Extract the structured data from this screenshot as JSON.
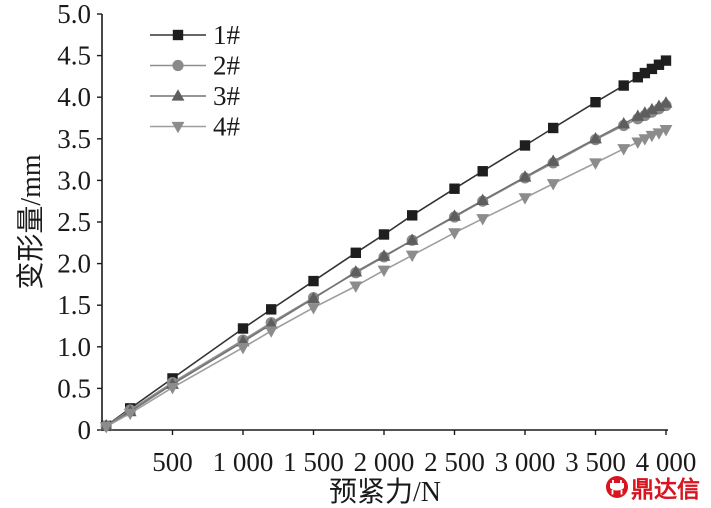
{
  "chart_data": {
    "type": "line",
    "xlabel": "预紧力/N",
    "ylabel": "变形量/mm",
    "xlim": [
      0,
      4000
    ],
    "ylim": [
      0,
      5.0
    ],
    "xticks": [
      500,
      1000,
      1500,
      2000,
      2500,
      3000,
      3500,
      4000
    ],
    "xtick_labels": [
      "500",
      "1 000",
      "1 500",
      "2 000",
      "2 500",
      "3 000",
      "3 500",
      "4 000"
    ],
    "yticks": [
      0,
      0.5,
      1.0,
      1.5,
      2.0,
      2.5,
      3.0,
      3.5,
      4.0,
      4.5,
      5.0
    ],
    "ytick_labels": [
      "0",
      "0.5",
      "1.0",
      "1.5",
      "2.0",
      "2.5",
      "3.0",
      "3.5",
      "4.0",
      "4.5",
      "5.0"
    ],
    "grid": false,
    "legend": {
      "position": "top-left"
    },
    "x": [
      30,
      200,
      500,
      1000,
      1200,
      1500,
      1800,
      2000,
      2200,
      2500,
      2700,
      3000,
      3200,
      3500,
      3700,
      3800,
      3850,
      3900,
      3950,
      4000
    ],
    "series": [
      {
        "name": "1#",
        "marker": "square-marker",
        "line_color": "#333333",
        "marker_color": "#1e1e1e",
        "values": [
          0.05,
          0.26,
          0.62,
          1.22,
          1.45,
          1.79,
          2.13,
          2.35,
          2.58,
          2.9,
          3.11,
          3.42,
          3.63,
          3.94,
          4.14,
          4.24,
          4.29,
          4.34,
          4.39,
          4.44
        ]
      },
      {
        "name": "2#",
        "marker": "circle-marker",
        "line_color": "#8f8f8f",
        "marker_color": "#8a8a8a",
        "values": [
          0.05,
          0.24,
          0.57,
          1.08,
          1.29,
          1.59,
          1.89,
          2.08,
          2.28,
          2.56,
          2.75,
          3.03,
          3.21,
          3.49,
          3.66,
          3.74,
          3.78,
          3.82,
          3.86,
          3.9
        ]
      },
      {
        "name": "3#",
        "marker": "triangle-up-marker",
        "line_color": "#737373",
        "marker_color": "#5e5e5e",
        "values": [
          0.05,
          0.22,
          0.55,
          1.06,
          1.27,
          1.58,
          1.9,
          2.09,
          2.28,
          2.57,
          2.76,
          3.04,
          3.23,
          3.5,
          3.68,
          3.77,
          3.81,
          3.85,
          3.89,
          3.93
        ]
      },
      {
        "name": "4#",
        "marker": "triangle-down-marker",
        "line_color": "#9e9e9e",
        "marker_color": "#8c8c8c",
        "values": [
          0.04,
          0.2,
          0.51,
          0.99,
          1.19,
          1.47,
          1.73,
          1.92,
          2.1,
          2.37,
          2.54,
          2.79,
          2.96,
          3.21,
          3.38,
          3.46,
          3.5,
          3.54,
          3.57,
          3.61
        ]
      }
    ]
  },
  "watermark": {
    "text": "鼎达信",
    "icon": "ding-logo-icon",
    "color": "#d7141f"
  }
}
